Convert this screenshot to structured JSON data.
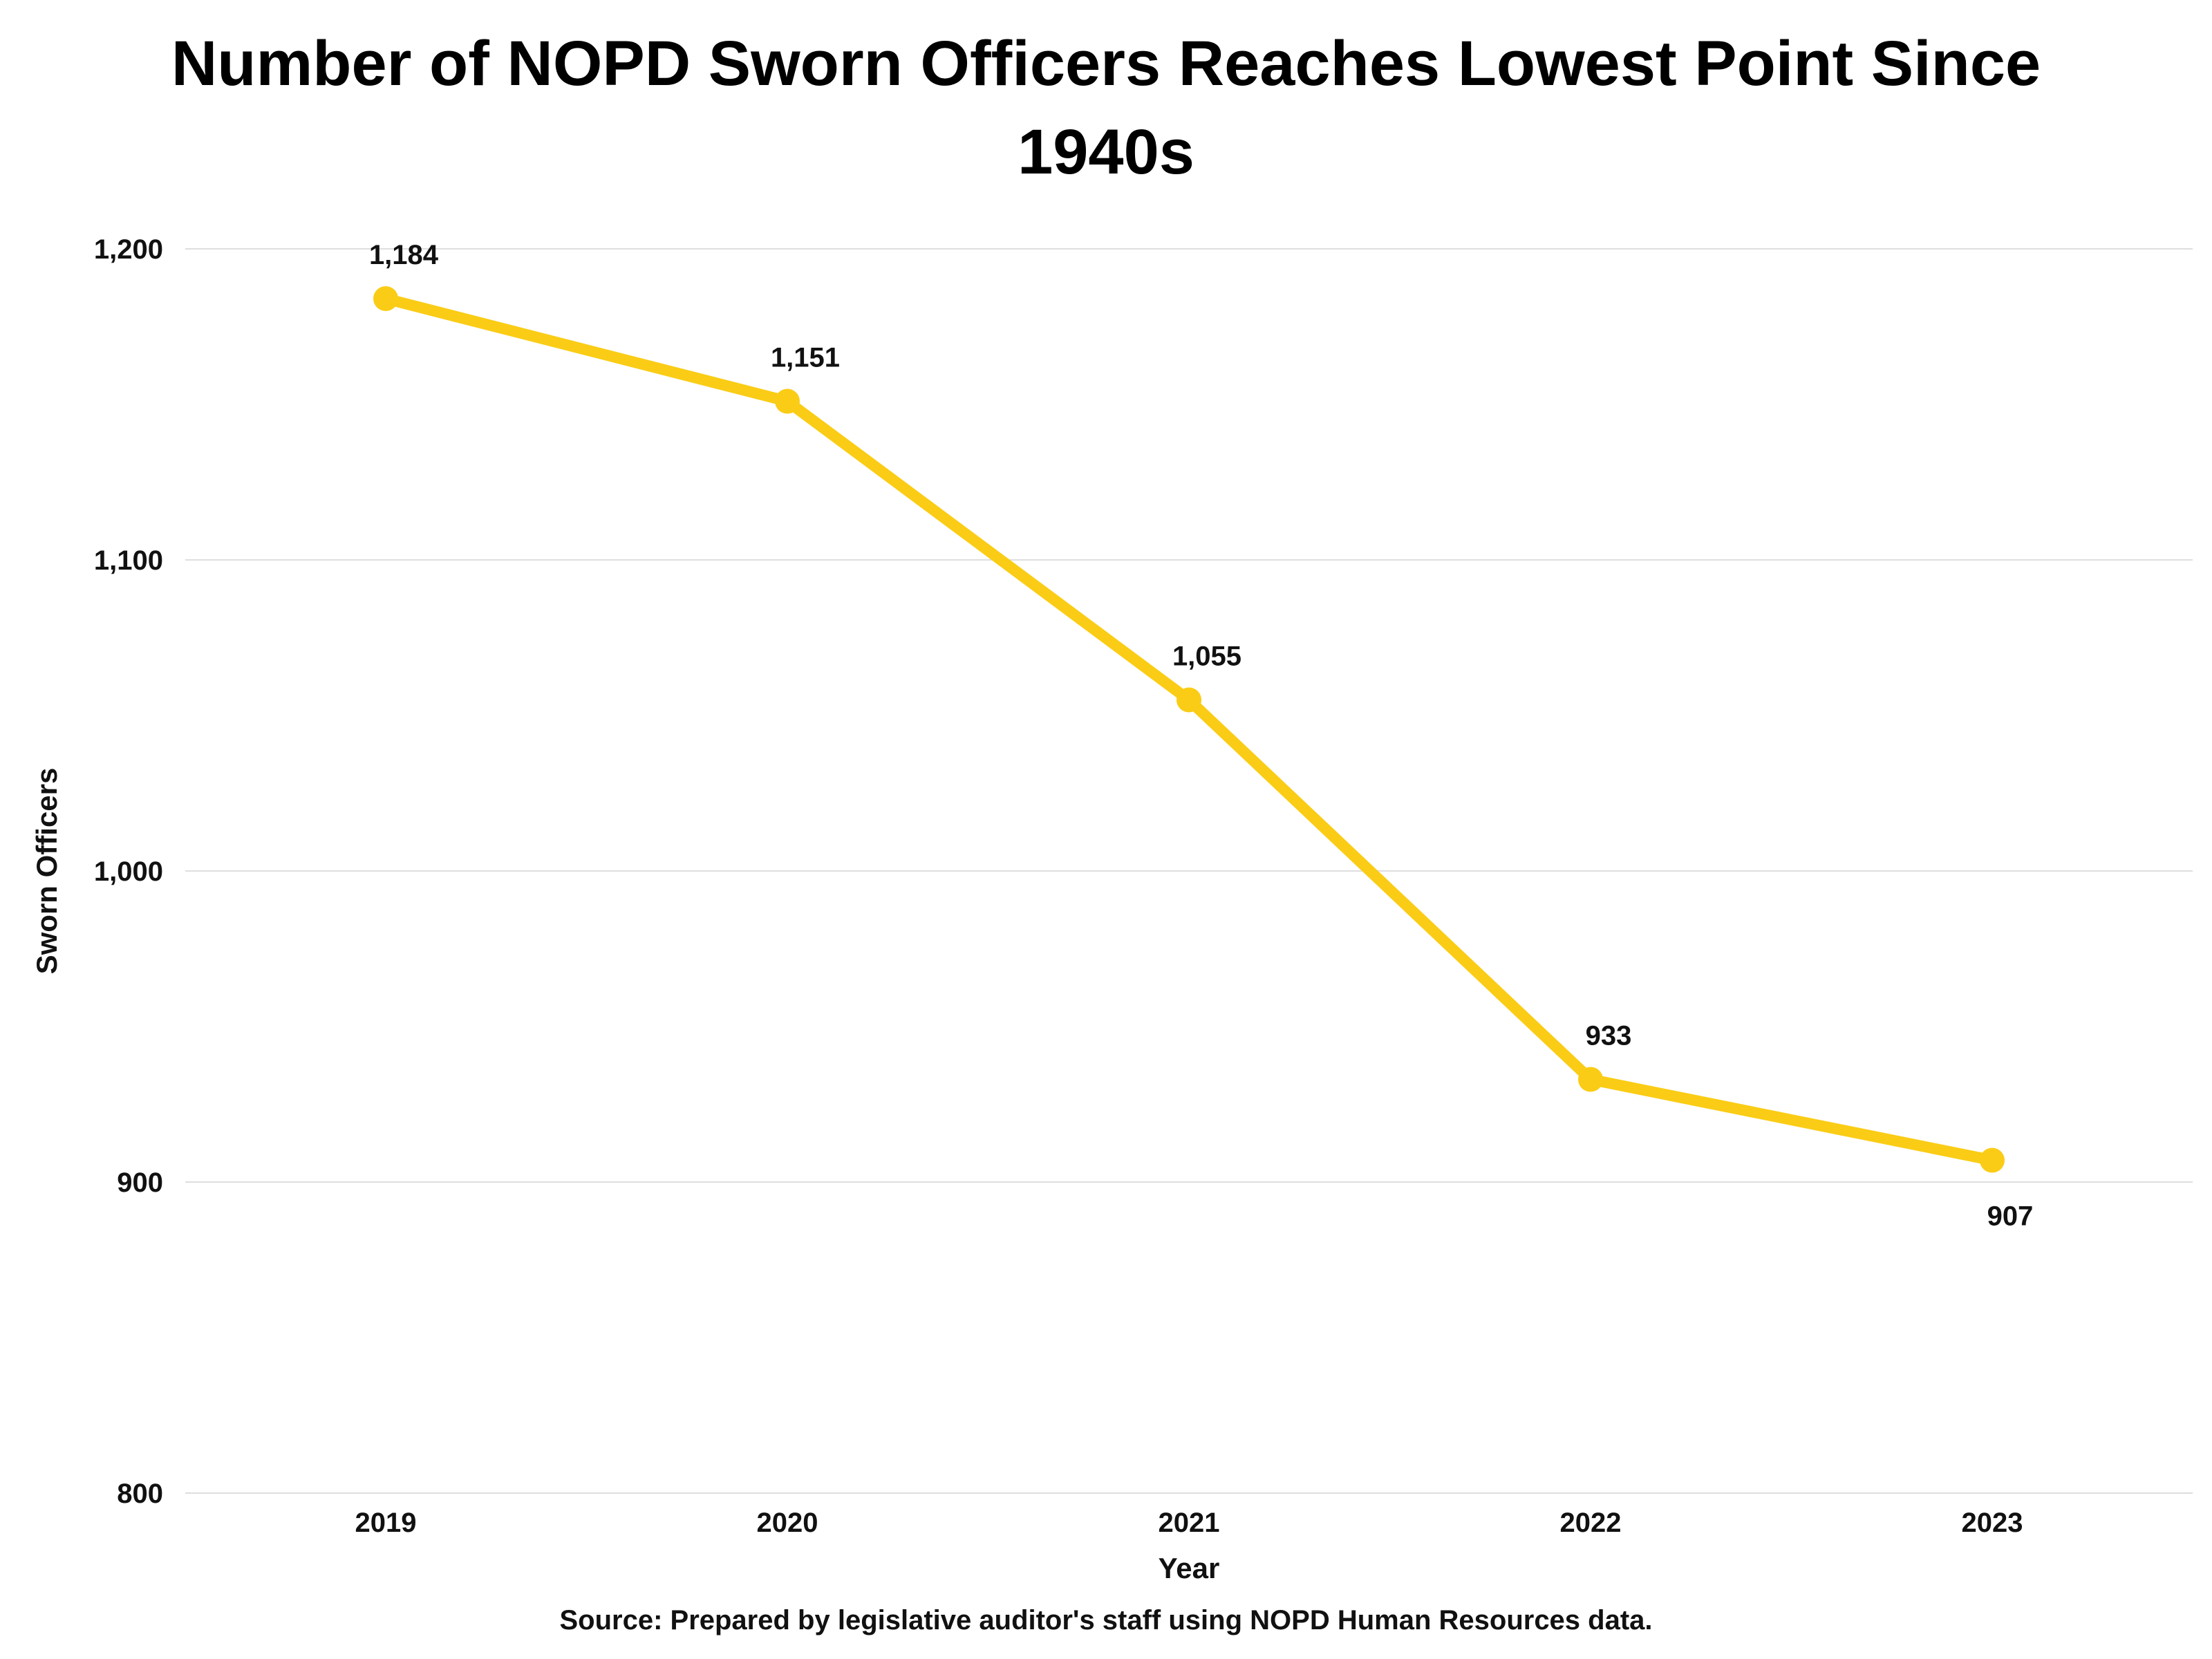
{
  "chart_data": {
    "type": "line",
    "title": "Number of NOPD Sworn Officers Reaches Lowest Point Since 1940s",
    "xlabel": "Year",
    "ylabel": "Sworn Officers",
    "x": [
      "2019",
      "2020",
      "2021",
      "2022",
      "2023"
    ],
    "series": [
      {
        "values": [
          1184,
          1151,
          1055,
          933,
          907
        ],
        "color": "#FACC15"
      }
    ],
    "data_labels": [
      "1,184",
      "1,151",
      "1,055",
      "933",
      "907"
    ],
    "ylim": [
      800,
      1200
    ],
    "y_ticks": [
      800,
      900,
      1000,
      1100,
      1200
    ],
    "y_tick_labels": [
      "800",
      "900",
      "1,000",
      "1,100",
      "1,200"
    ],
    "grid": true,
    "legend": "none"
  },
  "source": "Source: Prepared by legislative auditor's staff using NOPD Human Resources data."
}
